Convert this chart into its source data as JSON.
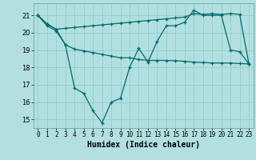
{
  "xlabel": "Humidex (Indice chaleur)",
  "bg_color": "#b2e0e0",
  "line_color": "#006b6b",
  "grid_color": "#90c8c8",
  "xlim": [
    -0.5,
    23.5
  ],
  "ylim": [
    14.5,
    21.7
  ],
  "yticks": [
    15,
    16,
    17,
    18,
    19,
    20,
    21
  ],
  "xticks": [
    0,
    1,
    2,
    3,
    4,
    5,
    6,
    7,
    8,
    9,
    10,
    11,
    12,
    13,
    14,
    15,
    16,
    17,
    18,
    19,
    20,
    21,
    22,
    23
  ],
  "line1_x": [
    0,
    1,
    2,
    3,
    4,
    5,
    6,
    7,
    8,
    9,
    10,
    11,
    12,
    13,
    14,
    15,
    16,
    17,
    18,
    19,
    20,
    21,
    22,
    23
  ],
  "line1_y": [
    21.0,
    20.4,
    20.1,
    19.3,
    16.8,
    16.5,
    15.5,
    14.8,
    16.0,
    16.2,
    18.0,
    19.1,
    18.3,
    19.5,
    20.4,
    20.4,
    20.6,
    21.3,
    21.0,
    21.0,
    21.0,
    19.0,
    18.9,
    18.2
  ],
  "line2_x": [
    0,
    1,
    2,
    3,
    4,
    5,
    6,
    7,
    8,
    9,
    10,
    11,
    12,
    13,
    14,
    15,
    16,
    17,
    18,
    19,
    20,
    21,
    22,
    23
  ],
  "line2_y": [
    21.0,
    20.5,
    20.2,
    20.25,
    20.3,
    20.35,
    20.4,
    20.45,
    20.5,
    20.55,
    20.6,
    20.65,
    20.7,
    20.75,
    20.8,
    20.85,
    20.9,
    21.1,
    21.05,
    21.1,
    21.05,
    21.1,
    21.05,
    18.2
  ],
  "line3_x": [
    0,
    1,
    2,
    3,
    4,
    5,
    6,
    7,
    8,
    9,
    10,
    11,
    12,
    13,
    14,
    15,
    16,
    17,
    18,
    19,
    20,
    21,
    22,
    23
  ],
  "line3_y": [
    21.0,
    20.5,
    20.2,
    19.3,
    19.05,
    18.95,
    18.85,
    18.75,
    18.65,
    18.55,
    18.55,
    18.45,
    18.4,
    18.4,
    18.4,
    18.38,
    18.35,
    18.3,
    18.28,
    18.25,
    18.25,
    18.25,
    18.22,
    18.2
  ]
}
